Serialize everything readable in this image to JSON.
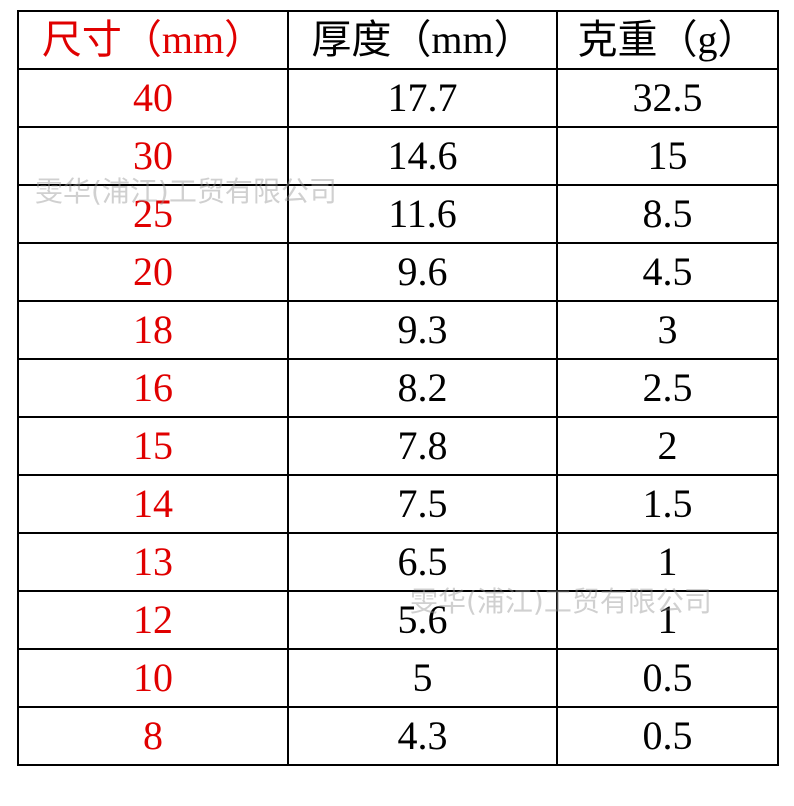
{
  "table": {
    "header": [
      "尺寸（mm）",
      "厚度（mm）",
      "克重（g）"
    ],
    "rows": [
      [
        "40",
        "17.7",
        "32.5"
      ],
      [
        "30",
        "14.6",
        "15"
      ],
      [
        "25",
        "11.6",
        "8.5"
      ],
      [
        "20",
        "9.6",
        "4.5"
      ],
      [
        "18",
        "9.3",
        "3"
      ],
      [
        "16",
        "8.2",
        "2.5"
      ],
      [
        "15",
        "7.8",
        "2"
      ],
      [
        "14",
        "7.5",
        "1.5"
      ],
      [
        "13",
        "6.5",
        "1"
      ],
      [
        "12",
        "5.6",
        "1"
      ],
      [
        "10",
        "5",
        "0.5"
      ],
      [
        "8",
        "4.3",
        "0.5"
      ]
    ]
  },
  "watermarks": [
    "雯华(浦江)工贸有限公司",
    "雯华(浦江)工贸有限公司"
  ]
}
